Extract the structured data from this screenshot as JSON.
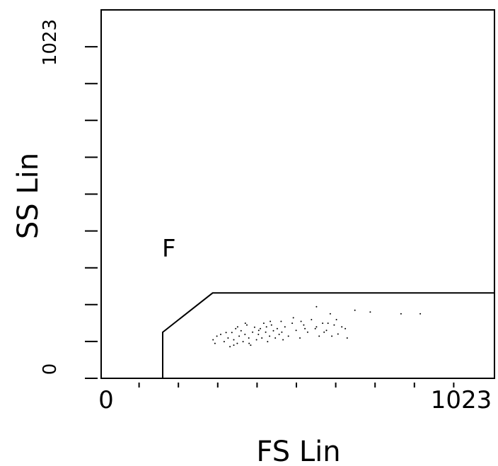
{
  "chart_data": {
    "type": "scatter",
    "xlabel": "FS Lin",
    "ylabel": "SS Lin",
    "xlim": [
      0,
      1023
    ],
    "ylim": [
      0,
      1023
    ],
    "x_tick_labels": [
      "0",
      "1023"
    ],
    "y_tick_labels": [
      "0",
      "1023"
    ],
    "grid": false,
    "gate": {
      "label": "F",
      "vertices": [
        [
          160,
          0
        ],
        [
          160,
          128
        ],
        [
          290,
          237
        ],
        [
          1023,
          237
        ]
      ]
    },
    "points": [
      [
        291,
        107
      ],
      [
        296,
        97
      ],
      [
        301,
        117
      ],
      [
        311,
        122
      ],
      [
        320,
        102
      ],
      [
        330,
        112
      ],
      [
        335,
        88
      ],
      [
        340,
        127
      ],
      [
        345,
        107
      ],
      [
        350,
        138
      ],
      [
        354,
        97
      ],
      [
        359,
        117
      ],
      [
        364,
        132
      ],
      [
        369,
        102
      ],
      [
        374,
        122
      ],
      [
        379,
        148
      ],
      [
        384,
        112
      ],
      [
        389,
        92
      ],
      [
        394,
        128
      ],
      [
        399,
        142
      ],
      [
        404,
        107
      ],
      [
        409,
        122
      ],
      [
        414,
        138
      ],
      [
        418,
        112
      ],
      [
        423,
        153
      ],
      [
        428,
        128
      ],
      [
        433,
        102
      ],
      [
        438,
        117
      ],
      [
        443,
        148
      ],
      [
        448,
        132
      ],
      [
        453,
        112
      ],
      [
        458,
        138
      ],
      [
        463,
        122
      ],
      [
        468,
        158
      ],
      [
        473,
        107
      ],
      [
        478,
        143
      ],
      [
        487,
        117
      ],
      [
        497,
        153
      ],
      [
        507,
        133
      ],
      [
        517,
        112
      ],
      [
        527,
        148
      ],
      [
        537,
        128
      ],
      [
        547,
        163
      ],
      [
        557,
        138
      ],
      [
        567,
        117
      ],
      [
        576,
        153
      ],
      [
        586,
        133
      ],
      [
        596,
        179
      ],
      [
        606,
        148
      ],
      [
        616,
        123
      ],
      [
        626,
        143
      ],
      [
        640,
        112
      ],
      [
        325,
        127
      ],
      [
        355,
        143
      ],
      [
        385,
        97
      ],
      [
        410,
        133
      ],
      [
        440,
        158
      ],
      [
        470,
        128
      ],
      [
        500,
        168
      ],
      [
        530,
        138
      ],
      [
        560,
        143
      ],
      [
        590,
        153
      ],
      [
        612,
        163
      ],
      [
        635,
        138
      ],
      [
        345,
        92
      ],
      [
        375,
        153
      ],
      [
        430,
        143
      ],
      [
        520,
        158
      ],
      [
        580,
        128
      ],
      [
        600,
        117
      ],
      [
        560,
        199
      ],
      [
        660,
        189
      ],
      [
        700,
        184
      ],
      [
        780,
        179
      ],
      [
        830,
        179
      ]
    ]
  }
}
